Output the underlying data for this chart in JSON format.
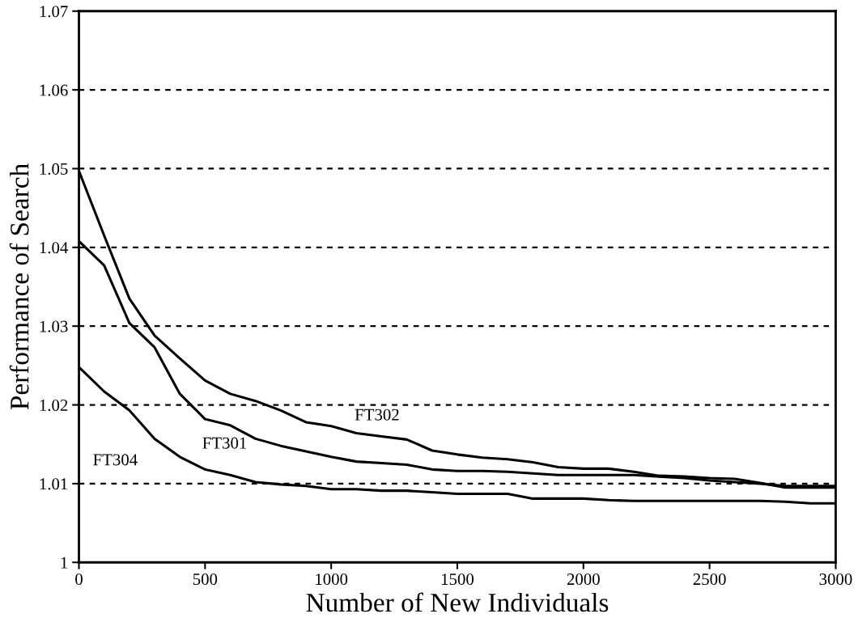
{
  "chart_data": {
    "type": "line",
    "xlabel": "Number of New Individuals",
    "ylabel": "Performance of Search",
    "x": [
      0,
      100,
      200,
      300,
      400,
      500,
      600,
      700,
      800,
      900,
      1000,
      1100,
      1200,
      1300,
      1400,
      1500,
      1600,
      1700,
      1800,
      1900,
      2000,
      2100,
      2200,
      2300,
      2400,
      2500,
      2600,
      2700,
      2800,
      2900,
      3000
    ],
    "series": [
      {
        "name": "FT302",
        "color": "#000000",
        "values": [
          1.0497,
          1.0415,
          1.0335,
          1.0288,
          1.0259,
          1.0231,
          1.0214,
          1.0205,
          1.0193,
          1.0178,
          1.0173,
          1.0164,
          1.016,
          1.0156,
          1.0142,
          1.0137,
          1.0133,
          1.0131,
          1.0127,
          1.0121,
          1.0119,
          1.0119,
          1.0115,
          1.011,
          1.0109,
          1.0107,
          1.0106,
          1.0101,
          1.0095,
          1.0095,
          1.0095
        ]
      },
      {
        "name": "FT301",
        "color": "#000000",
        "values": [
          1.0408,
          1.0377,
          1.0304,
          1.0273,
          1.0214,
          1.0182,
          1.0174,
          1.0157,
          1.0148,
          1.0141,
          1.0134,
          1.0128,
          1.0126,
          1.0124,
          1.0118,
          1.0116,
          1.0116,
          1.0115,
          1.0113,
          1.0111,
          1.0111,
          1.0111,
          1.0111,
          1.0109,
          1.0107,
          1.0104,
          1.0102,
          1.01,
          1.0097,
          1.0097,
          1.0097
        ]
      },
      {
        "name": "FT304",
        "color": "#000000",
        "values": [
          1.0248,
          1.0217,
          1.0193,
          1.0157,
          1.0134,
          1.0118,
          1.0111,
          1.0102,
          1.0099,
          1.0097,
          1.0093,
          1.0093,
          1.0091,
          1.0091,
          1.0089,
          1.0087,
          1.0087,
          1.0087,
          1.0081,
          1.0081,
          1.0081,
          1.0079,
          1.0078,
          1.0078,
          1.0078,
          1.0078,
          1.0078,
          1.0078,
          1.0077,
          1.0075,
          1.0075
        ]
      }
    ],
    "xlim": [
      0,
      3000
    ],
    "xticks": [
      0,
      500,
      1000,
      1500,
      2000,
      2500,
      3000
    ],
    "ylim": [
      1,
      1.07
    ],
    "yticks": [
      1,
      1.01,
      1.02,
      1.03,
      1.04,
      1.05,
      1.06,
      1.07
    ],
    "grid": "y",
    "marker": "none",
    "line_style": "solid"
  }
}
